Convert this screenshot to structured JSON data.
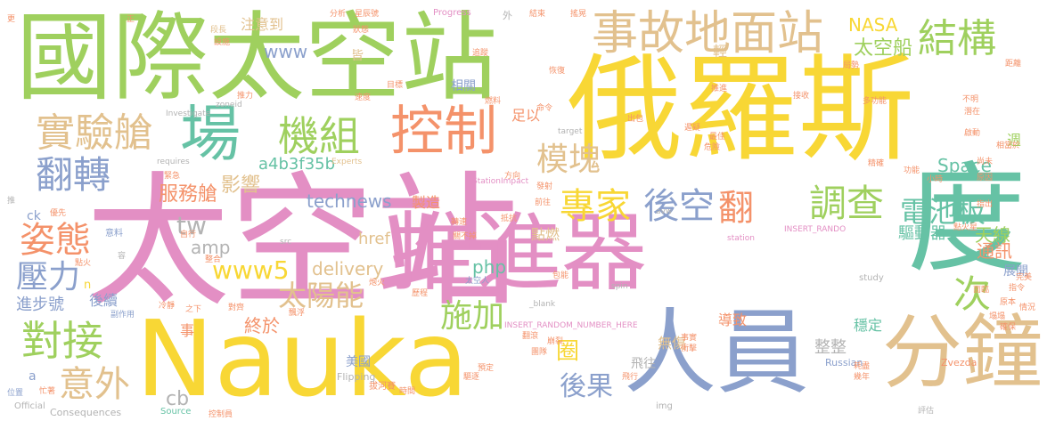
{
  "palette": {
    "green": "#9fd05e",
    "yellow": "#f8d735",
    "pink": "#e38fc4",
    "blue": "#8ba0cc",
    "orange": "#f4926a",
    "tan": "#e2c18e",
    "teal": "#66c2a5",
    "grey": "#b3b3b3"
  },
  "words": [
    {
      "text": "太空站",
      "color": "pink"
    },
    {
      "text": "國際太空站",
      "color": "green"
    },
    {
      "text": "俄羅斯",
      "color": "yellow"
    },
    {
      "text": "Nauka",
      "color": "yellow"
    },
    {
      "text": "推進器",
      "color": "pink"
    },
    {
      "text": "度",
      "color": "teal"
    },
    {
      "text": "人員",
      "color": "blue"
    },
    {
      "text": "分鐘",
      "color": "tan"
    },
    {
      "text": "控制",
      "color": "orange"
    },
    {
      "text": "場",
      "color": "teal"
    },
    {
      "text": "事故地面站",
      "color": "tan"
    },
    {
      "text": "結構",
      "color": "green"
    },
    {
      "text": "機組",
      "color": "green"
    },
    {
      "text": "實驗艙",
      "color": "tan"
    },
    {
      "text": "翻轉",
      "color": "blue"
    },
    {
      "text": "模塊",
      "color": "tan"
    },
    {
      "text": "專家",
      "color": "yellow"
    },
    {
      "text": "後空",
      "color": "blue"
    },
    {
      "text": "翻",
      "color": "orange"
    },
    {
      "text": "調查",
      "color": "green"
    },
    {
      "text": "電池板",
      "color": "teal"
    },
    {
      "text": "姿態",
      "color": "orange"
    },
    {
      "text": "壓力",
      "color": "blue"
    },
    {
      "text": "太陽能",
      "color": "tan"
    },
    {
      "text": "施加",
      "color": "green"
    },
    {
      "text": "對接",
      "color": "green"
    },
    {
      "text": "意外",
      "color": "tan"
    },
    {
      "text": "次",
      "color": "green"
    },
    {
      "text": "後果",
      "color": "blue"
    },
    {
      "text": "圈",
      "color": "yellow"
    },
    {
      "text": "www5",
      "color": "yellow"
    },
    {
      "text": "tw",
      "color": "grey"
    },
    {
      "text": "cb",
      "color": "grey"
    },
    {
      "text": "Space",
      "color": "teal"
    },
    {
      "text": "www",
      "color": "blue"
    },
    {
      "text": "NASA",
      "color": "yellow"
    },
    {
      "text": "太空船",
      "color": "green"
    },
    {
      "text": "天線",
      "color": "green"
    },
    {
      "text": "通訊",
      "color": "orange"
    },
    {
      "text": "展開",
      "color": "blue"
    },
    {
      "text": "驅動器",
      "color": "teal"
    },
    {
      "text": "影響",
      "color": "tan"
    },
    {
      "text": "服務艙",
      "color": "orange"
    },
    {
      "text": "technews",
      "color": "blue"
    },
    {
      "text": "a4b3f35b",
      "color": "teal"
    },
    {
      "text": "php",
      "color": "teal"
    },
    {
      "text": "delivery",
      "color": "tan"
    },
    {
      "text": "amp",
      "color": "grey"
    },
    {
      "text": "href",
      "color": "tan"
    },
    {
      "text": "點燃",
      "color": "tan"
    },
    {
      "text": "終於",
      "color": "orange"
    },
    {
      "text": "飛往",
      "color": "grey"
    },
    {
      "text": "無傷",
      "color": "tan"
    },
    {
      "text": "導致",
      "color": "orange"
    },
    {
      "text": "穩定",
      "color": "teal"
    },
    {
      "text": "整整",
      "color": "grey"
    },
    {
      "text": "注意到",
      "color": "tan"
    },
    {
      "text": "製造",
      "color": "orange"
    },
    {
      "text": "足以",
      "color": "orange"
    },
    {
      "text": "相關",
      "color": "blue"
    },
    {
      "text": "進步號",
      "color": "blue"
    },
    {
      "text": "後續",
      "color": "blue"
    },
    {
      "text": "美國",
      "color": "blue"
    },
    {
      "text": "事",
      "color": "orange"
    },
    {
      "text": "週",
      "color": "green"
    },
    {
      "text": "皆",
      "color": "tan"
    },
    {
      "text": "輕",
      "color": "tan"
    },
    {
      "text": "Russian",
      "color": "blue"
    },
    {
      "text": "Zvezda",
      "color": "orange"
    },
    {
      "text": "Flipping",
      "color": "grey"
    },
    {
      "text": "Consequences",
      "color": "grey"
    },
    {
      "text": "Official",
      "color": "grey"
    },
    {
      "text": "Source",
      "color": "teal"
    },
    {
      "text": "img",
      "color": "grey"
    },
    {
      "text": "Progress",
      "color": "pink"
    },
    {
      "text": "Investigate",
      "color": "grey"
    },
    {
      "text": "Experts",
      "color": "tan"
    },
    {
      "text": "requires",
      "color": "grey"
    },
    {
      "text": "target",
      "color": "grey"
    },
    {
      "text": "StationImpact",
      "color": "pink"
    },
    {
      "text": "station",
      "color": "pink"
    },
    {
      "text": "INSERT_RANDO",
      "color": "pink"
    },
    {
      "text": "INSERT_RANDOM_NUMBER_HERE",
      "color": "pink"
    },
    {
      "text": "_blank",
      "color": "grey"
    },
    {
      "text": "spin",
      "color": "grey"
    },
    {
      "text": "study",
      "color": "grey"
    },
    {
      "text": "zoneid",
      "color": "grey"
    },
    {
      "text": "src",
      "color": "grey"
    },
    {
      "text": "avw",
      "color": "grey"
    },
    {
      "text": "ck",
      "color": "blue"
    },
    {
      "text": "a",
      "color": "blue"
    },
    {
      "text": "n",
      "color": "yellow"
    },
    {
      "text": "拔河賽",
      "color": "orange"
    },
    {
      "text": "太空人",
      "color": "blue"
    },
    {
      "text": "控制員",
      "color": "orange"
    },
    {
      "text": "副作用",
      "color": "blue"
    },
    {
      "text": "意料",
      "color": "blue"
    },
    {
      "text": "星辰號",
      "color": "orange"
    },
    {
      "text": "分析",
      "color": "orange"
    },
    {
      "text": "段長",
      "color": "tan"
    },
    {
      "text": "追蹤",
      "color": "orange"
    },
    {
      "text": "恢復",
      "color": "orange"
    },
    {
      "text": "推力",
      "color": "orange"
    },
    {
      "text": "速度",
      "color": "orange"
    },
    {
      "text": "目標",
      "color": "orange"
    },
    {
      "text": "燃料",
      "color": "orange"
    },
    {
      "text": "命令",
      "color": "orange"
    },
    {
      "text": "出包",
      "color": "orange"
    },
    {
      "text": "遲疑",
      "color": "orange"
    },
    {
      "text": "最佳",
      "color": "orange"
    },
    {
      "text": "危險",
      "color": "orange"
    },
    {
      "text": "功能",
      "color": "orange"
    },
    {
      "text": "精確",
      "color": "orange"
    },
    {
      "text": "尚未",
      "color": "orange"
    },
    {
      "text": "原因",
      "color": "orange"
    },
    {
      "text": "指出",
      "color": "orange"
    },
    {
      "text": "點火星",
      "color": "orange"
    },
    {
      "text": "多功能",
      "color": "orange"
    },
    {
      "text": "不明",
      "color": "orange"
    },
    {
      "text": "潛在",
      "color": "orange"
    },
    {
      "text": "距離",
      "color": "orange"
    },
    {
      "text": "相當於",
      "color": "orange"
    },
    {
      "text": "啟動",
      "color": "orange"
    },
    {
      "text": "小時",
      "color": "orange"
    },
    {
      "text": "局勢",
      "color": "orange"
    },
    {
      "text": "接收",
      "color": "orange"
    },
    {
      "text": "推進",
      "color": "orange"
    },
    {
      "text": "緊急",
      "color": "orange"
    },
    {
      "text": "優先",
      "color": "orange"
    },
    {
      "text": "發射",
      "color": "orange"
    },
    {
      "text": "方向",
      "color": "orange"
    },
    {
      "text": "前往",
      "color": "orange"
    },
    {
      "text": "抵抗",
      "color": "orange"
    },
    {
      "text": "轉速",
      "color": "orange"
    },
    {
      "text": "關不掉",
      "color": "orange"
    },
    {
      "text": "自行",
      "color": "orange"
    },
    {
      "text": "炮火",
      "color": "orange"
    },
    {
      "text": "整合",
      "color": "orange"
    },
    {
      "text": "冷靜",
      "color": "orange"
    },
    {
      "text": "之下",
      "color": "orange"
    },
    {
      "text": "對齊",
      "color": "orange"
    },
    {
      "text": "飄浮",
      "color": "orange"
    },
    {
      "text": "歷程",
      "color": "orange"
    },
    {
      "text": "包能",
      "color": "orange"
    },
    {
      "text": "翻滾",
      "color": "orange"
    },
    {
      "text": "崩裂",
      "color": "orange"
    },
    {
      "text": "團隊",
      "color": "orange"
    },
    {
      "text": "事實",
      "color": "orange"
    },
    {
      "text": "衝擊",
      "color": "orange"
    },
    {
      "text": "預定",
      "color": "orange"
    },
    {
      "text": "飛行",
      "color": "orange"
    },
    {
      "text": "時間",
      "color": "orange"
    },
    {
      "text": "驅逐",
      "color": "orange"
    },
    {
      "text": "位置",
      "color": "blue"
    },
    {
      "text": "忙著",
      "color": "orange"
    },
    {
      "text": "評估",
      "color": "grey"
    },
    {
      "text": "幾年",
      "color": "orange"
    },
    {
      "text": "耗盡",
      "color": "orange"
    },
    {
      "text": "塌塌",
      "color": "orange"
    },
    {
      "text": "確保",
      "color": "orange"
    },
    {
      "text": "原本",
      "color": "orange"
    },
    {
      "text": "指令",
      "color": "orange"
    },
    {
      "text": "完美",
      "color": "orange"
    },
    {
      "text": "面臨",
      "color": "orange"
    },
    {
      "text": "情況",
      "color": "orange"
    },
    {
      "text": "設施",
      "color": "orange"
    },
    {
      "text": "狀態",
      "color": "orange"
    },
    {
      "text": "結束",
      "color": "orange"
    },
    {
      "text": "搖晃",
      "color": "orange"
    },
    {
      "text": "外",
      "color": "grey"
    },
    {
      "text": "正",
      "color": "orange"
    },
    {
      "text": "更",
      "color": "orange"
    },
    {
      "text": "推",
      "color": "grey"
    },
    {
      "text": "容",
      "color": "grey"
    },
    {
      "text": "點火",
      "color": "orange"
    }
  ]
}
